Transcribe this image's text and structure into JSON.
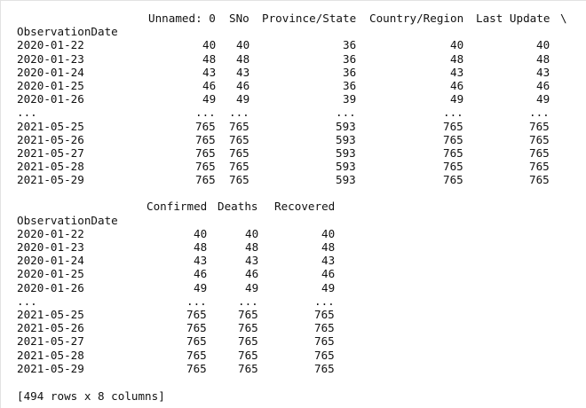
{
  "output": {
    "table1": {
      "headers": [
        "Unnamed: 0",
        "SNo",
        "Province/State",
        "Country/Region",
        "Last Update",
        "\\"
      ],
      "index_name": "ObservationDate",
      "rows": [
        [
          "2020-01-22",
          "40",
          "40",
          "36",
          "40",
          "40"
        ],
        [
          "2020-01-23",
          "48",
          "48",
          "36",
          "48",
          "48"
        ],
        [
          "2020-01-24",
          "43",
          "43",
          "36",
          "43",
          "43"
        ],
        [
          "2020-01-25",
          "46",
          "46",
          "36",
          "46",
          "46"
        ],
        [
          "2020-01-26",
          "49",
          "49",
          "39",
          "49",
          "49"
        ],
        [
          "...",
          "...",
          "...",
          "...",
          "...",
          "..."
        ],
        [
          "2021-05-25",
          "765",
          "765",
          "593",
          "765",
          "765"
        ],
        [
          "2021-05-26",
          "765",
          "765",
          "593",
          "765",
          "765"
        ],
        [
          "2021-05-27",
          "765",
          "765",
          "593",
          "765",
          "765"
        ],
        [
          "2021-05-28",
          "765",
          "765",
          "593",
          "765",
          "765"
        ],
        [
          "2021-05-29",
          "765",
          "765",
          "593",
          "765",
          "765"
        ]
      ]
    },
    "table2": {
      "headers": [
        "Confirmed",
        "Deaths",
        "Recovered"
      ],
      "index_name": "ObservationDate",
      "rows": [
        [
          "2020-01-22",
          "40",
          "40",
          "40"
        ],
        [
          "2020-01-23",
          "48",
          "48",
          "48"
        ],
        [
          "2020-01-24",
          "43",
          "43",
          "43"
        ],
        [
          "2020-01-25",
          "46",
          "46",
          "46"
        ],
        [
          "2020-01-26",
          "49",
          "49",
          "49"
        ],
        [
          "...",
          "...",
          "...",
          "..."
        ],
        [
          "2021-05-25",
          "765",
          "765",
          "765"
        ],
        [
          "2021-05-26",
          "765",
          "765",
          "765"
        ],
        [
          "2021-05-27",
          "765",
          "765",
          "765"
        ],
        [
          "2021-05-28",
          "765",
          "765",
          "765"
        ],
        [
          "2021-05-29",
          "765",
          "765",
          "765"
        ]
      ]
    },
    "footer": "[494 rows x 8 columns]"
  }
}
